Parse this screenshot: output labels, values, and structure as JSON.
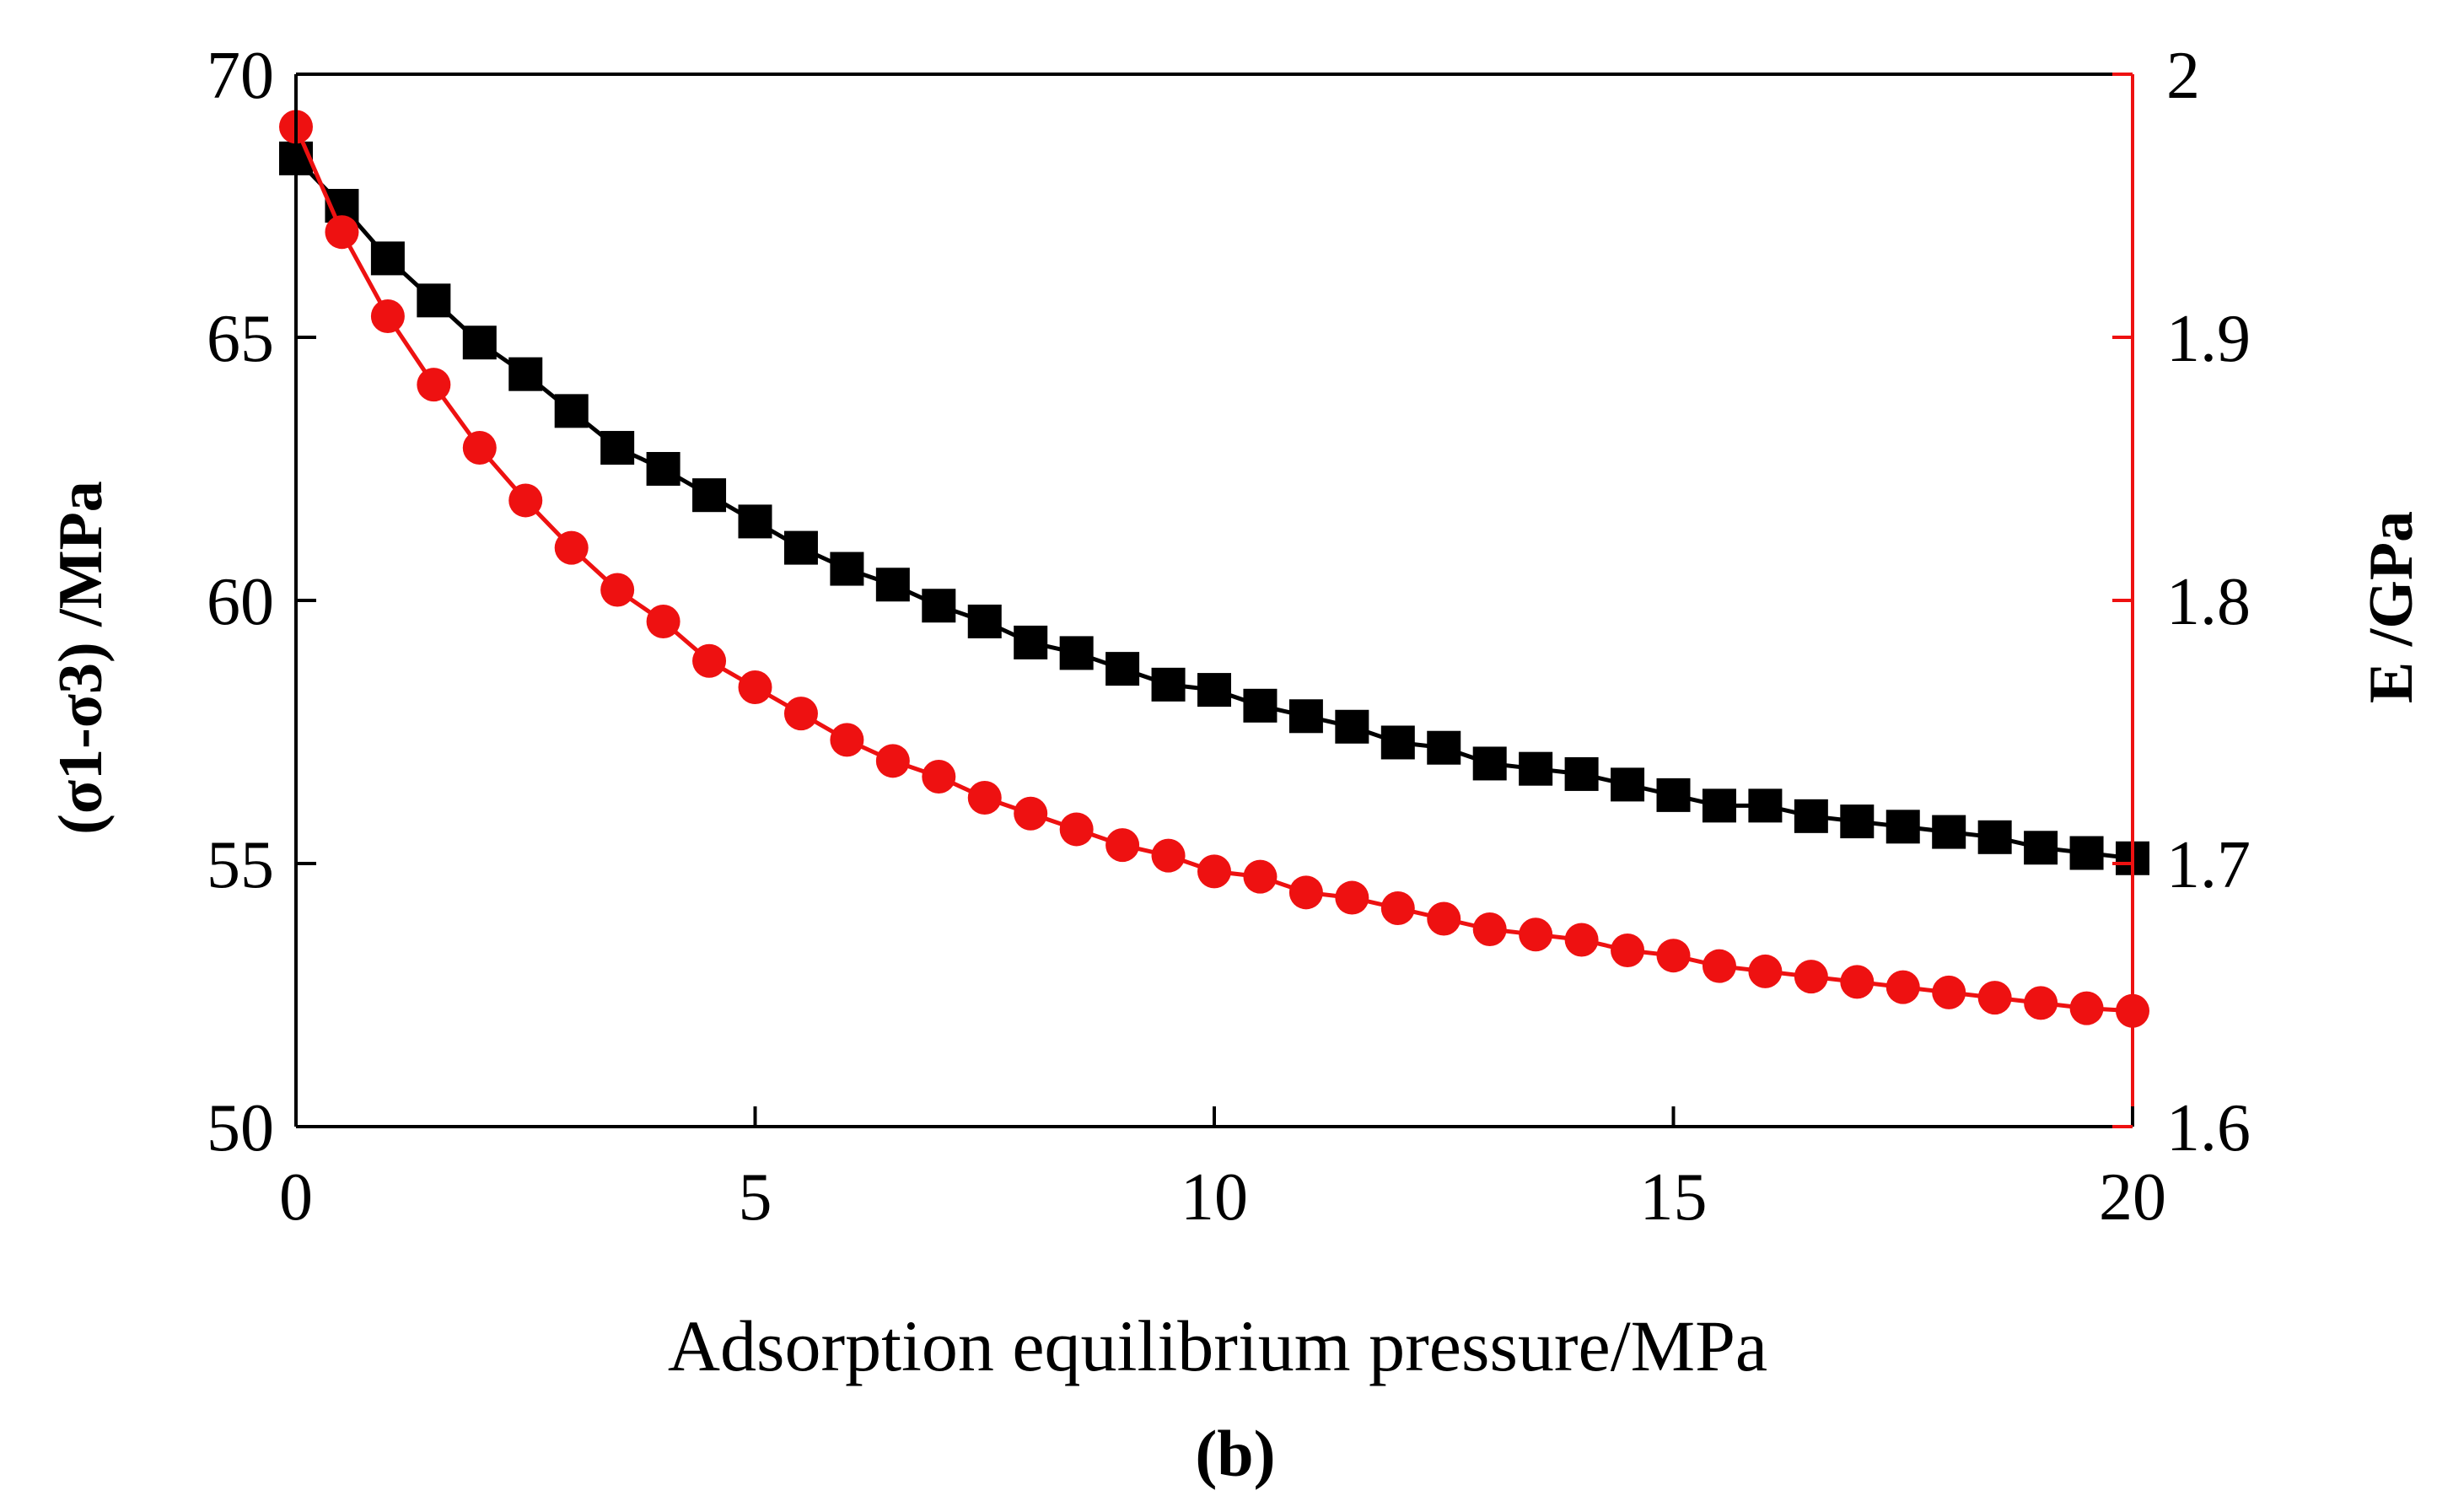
{
  "chart_data": {
    "type": "line",
    "title": "",
    "xlabel": "Adsorption equilibrium pressure/MPa",
    "ylabel": "(σ1-σ3) /MPa",
    "y2label": "E /GPa",
    "caption": "(b)",
    "xlim": [
      0,
      20
    ],
    "ylim": [
      50,
      70
    ],
    "y2lim": [
      1.6,
      2.0
    ],
    "xticks": [
      "0",
      "5",
      "10",
      "15",
      "20"
    ],
    "yticks": [
      "50",
      "55",
      "60",
      "65",
      "70"
    ],
    "y2ticks": [
      "1.6",
      "1.7",
      "1.8",
      "1.9",
      "2"
    ],
    "grid": false,
    "legend": "none",
    "series": [
      {
        "name": "(σ1-σ3)",
        "axis": "left",
        "color": "#000000",
        "marker": "square",
        "x": [
          0,
          0.5,
          1,
          1.5,
          2,
          2.5,
          3,
          3.5,
          4,
          4.5,
          5,
          5.5,
          6,
          6.5,
          7,
          7.5,
          8,
          8.5,
          9,
          9.5,
          10,
          10.5,
          11,
          11.5,
          12,
          12.5,
          13,
          13.5,
          14,
          14.5,
          15,
          15.5,
          16,
          16.5,
          17,
          17.5,
          18,
          18.5,
          19,
          19.5,
          20
        ],
        "values": [
          68.4,
          67.5,
          66.5,
          65.7,
          64.9,
          64.3,
          63.6,
          62.9,
          62.5,
          62.0,
          61.5,
          61.0,
          60.6,
          60.3,
          59.9,
          59.6,
          59.2,
          59.0,
          58.7,
          58.4,
          58.3,
          58.0,
          57.8,
          57.6,
          57.3,
          57.2,
          56.9,
          56.8,
          56.7,
          56.5,
          56.3,
          56.1,
          56.1,
          55.9,
          55.8,
          55.7,
          55.6,
          55.5,
          55.3,
          55.2,
          55.1
        ]
      },
      {
        "name": "E",
        "axis": "right",
        "color": "#ee1111",
        "marker": "circle",
        "x": [
          0,
          0.5,
          1,
          1.5,
          2,
          2.5,
          3,
          3.5,
          4,
          4.5,
          5,
          5.5,
          6,
          6.5,
          7,
          7.5,
          8,
          8.5,
          9,
          9.5,
          10,
          10.5,
          11,
          11.5,
          12,
          12.5,
          13,
          13.5,
          14,
          14.5,
          15,
          15.5,
          16,
          16.5,
          17,
          17.5,
          18,
          18.5,
          19,
          19.5,
          20
        ],
        "values": [
          1.98,
          1.94,
          1.908,
          1.882,
          1.858,
          1.838,
          1.82,
          1.804,
          1.792,
          1.777,
          1.767,
          1.757,
          1.747,
          1.739,
          1.733,
          1.725,
          1.719,
          1.713,
          1.707,
          1.703,
          1.697,
          1.695,
          1.689,
          1.687,
          1.683,
          1.679,
          1.675,
          1.673,
          1.671,
          1.667,
          1.665,
          1.661,
          1.659,
          1.657,
          1.655,
          1.653,
          1.651,
          1.649,
          1.647,
          1.645,
          1.644
        ]
      }
    ]
  }
}
